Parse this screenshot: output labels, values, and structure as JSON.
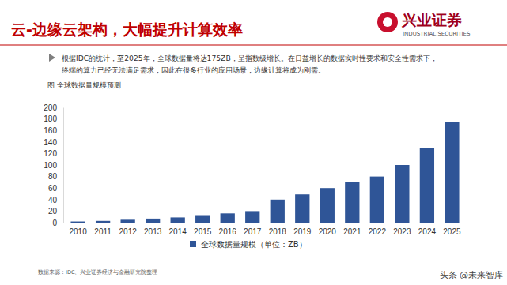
{
  "header": {
    "title": "云-边缘云架构，大幅提升计算效率",
    "logo": "兴业证券",
    "logo_en": "INDUSTRIAL SECURITIES"
  },
  "text": [
    "根据IDC的统计，至2025年，全球数据量将达175ZB，呈指数级增长。在日益增长的数据实时性要求和安全性需求下，",
    "终端的算力已经无法满足需求，因此在很多行业的应用场景，边缘计算将成为刚需。"
  ],
  "footer": {
    "source": "数据来源：IDC、兴业证券经济与金融研究院整理",
    "watermark": "头条 @未来智库"
  },
  "chart_data": {
    "type": "bar",
    "title": "图 全球数据量规模预测",
    "categories": [
      "2010",
      "2011",
      "2012",
      "2013",
      "2014",
      "2015",
      "2016",
      "2017",
      "2018",
      "2019",
      "2020",
      "2021",
      "2022",
      "2023",
      "2024",
      "2025"
    ],
    "series": [
      {
        "name": "全球数据量规模（单位：ZB）",
        "color": "#2f5597",
        "values": [
          2,
          3,
          5,
          7,
          9,
          13,
          16,
          20,
          40,
          49,
          60,
          70,
          80,
          100,
          130,
          175
        ]
      }
    ],
    "ylim": [
      0,
      200
    ],
    "yticks": [
      0,
      20,
      40,
      60,
      80,
      100,
      120,
      140,
      160,
      180,
      200
    ],
    "grid": false,
    "legend": "bottom"
  }
}
